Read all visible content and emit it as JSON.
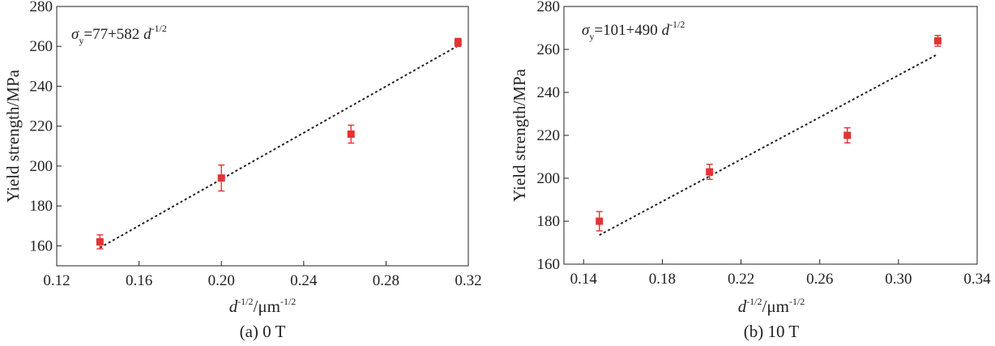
{
  "chart_data": [
    {
      "type": "scatter",
      "caption": "(a) 0 T",
      "equation": {
        "sigma": "σ",
        "sub": "y",
        "text": "=77+582 ",
        "d": "d",
        "exp": "-1/2"
      },
      "xlabel": {
        "d": "d",
        "exp": "-1/2",
        "mid": "/μm",
        "exp2": "-1/2"
      },
      "ylabel": "Yield strength/MPa",
      "xlim": [
        0.12,
        0.32
      ],
      "ylim": [
        150,
        280
      ],
      "xticks": [
        0.12,
        0.16,
        0.2,
        0.24,
        0.28,
        0.32
      ],
      "xtick_labels": [
        "0.12",
        "0.16",
        "0.20",
        "0.24",
        "0.28",
        "0.32"
      ],
      "yticks": [
        160,
        180,
        200,
        220,
        240,
        260,
        280
      ],
      "ytick_labels": [
        "160",
        "180",
        "200",
        "220",
        "240",
        "260",
        "280"
      ],
      "points": [
        {
          "x": 0.141,
          "y": 162,
          "err": 3.5
        },
        {
          "x": 0.2,
          "y": 194,
          "err": 6.5
        },
        {
          "x": 0.263,
          "y": 216,
          "err": 4.5
        },
        {
          "x": 0.315,
          "y": 262,
          "err": 2
        }
      ],
      "fit": {
        "intercept": 77,
        "slope": 582,
        "x0": 0.141,
        "x1": 0.315
      },
      "marker_color": "#e53333"
    },
    {
      "type": "scatter",
      "caption": "(b) 10 T",
      "equation": {
        "sigma": "σ",
        "sub": "y",
        "text": "=101+490 ",
        "d": "d",
        "exp": "-1/2"
      },
      "xlabel": {
        "d": "d",
        "exp": "-1/2",
        "mid": "/μm",
        "exp2": "-1/2"
      },
      "ylabel": "Yield strength/MPa",
      "xlim": [
        0.13,
        0.34
      ],
      "ylim": [
        160,
        280
      ],
      "xticks": [
        0.14,
        0.18,
        0.22,
        0.26,
        0.3,
        0.34
      ],
      "xtick_labels": [
        "0.14",
        "0.18",
        "0.22",
        "0.26",
        "0.30",
        "0.34"
      ],
      "yticks": [
        160,
        180,
        200,
        220,
        240,
        260,
        280
      ],
      "ytick_labels": [
        "160",
        "180",
        "200",
        "220",
        "240",
        "260",
        "280"
      ],
      "points": [
        {
          "x": 0.148,
          "y": 180,
          "err": 4.5
        },
        {
          "x": 0.204,
          "y": 203,
          "err": 3.5
        },
        {
          "x": 0.274,
          "y": 220,
          "err": 3.5
        },
        {
          "x": 0.32,
          "y": 264,
          "err": 2.5
        }
      ],
      "fit": {
        "intercept": 101,
        "slope": 490,
        "x0": 0.148,
        "x1": 0.32
      },
      "marker_color": "#e53333"
    }
  ]
}
